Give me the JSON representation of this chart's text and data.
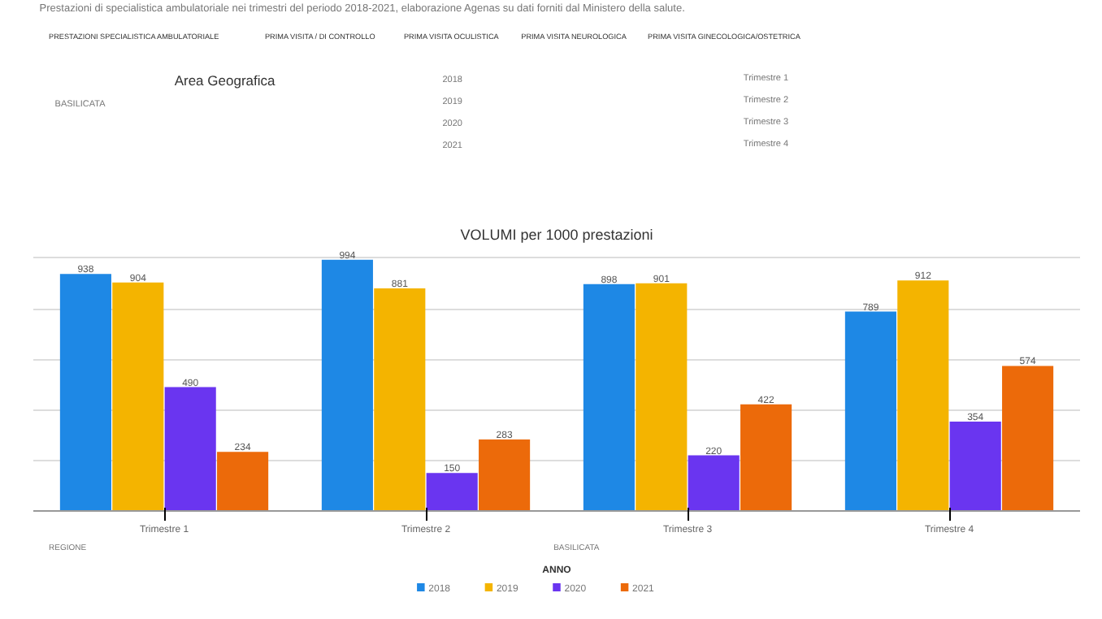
{
  "chart_data": {
    "type": "bar",
    "title": "VOLUMI per 1000 prestazioni",
    "legend_title": "ANNO",
    "categories": [
      "Trimestre 1",
      "Trimestre 2",
      "Trimestre 3",
      "Trimestre 4"
    ],
    "series": [
      {
        "name": "2018",
        "color": "#1e88e5",
        "values": [
          938,
          994,
          898,
          789
        ]
      },
      {
        "name": "2019",
        "color": "#f4b400",
        "values": [
          904,
          881,
          901,
          912
        ]
      },
      {
        "name": "2020",
        "color": "#6a35f0",
        "values": [
          490,
          150,
          220,
          354
        ]
      },
      {
        "name": "2021",
        "color": "#ec6a0a",
        "values": [
          234,
          283,
          422,
          574
        ]
      }
    ],
    "grid": "y",
    "legend": "bottom",
    "tick_labels": "x",
    "data_labels": true,
    "annotations": [
      "Prestazioni di specialistica ambulatoriale nei trimestri del periodo 2018-2021, elaborazione Agenas su dati forniti dal Ministero della salute.",
      "PRESTAZIONI SPECIALISTICA AMBULATORIALE",
      "PRIMA VISITA / DI CONTROLLO",
      "PRIMA VISITA OCULISTICA",
      "PRIMA VISITA NEUROLOGICA",
      "PRIMA VISITA GINECOLOGICA/OSTETRICA",
      "Area Geografica",
      "BASILICATA",
      "2018",
      "2019",
      "2020",
      "2021",
      "Trimestre 1",
      "Trimestre 2",
      "Trimestre 3",
      "Trimestre 4",
      "REGIONE",
      "BASILICATA"
    ]
  }
}
